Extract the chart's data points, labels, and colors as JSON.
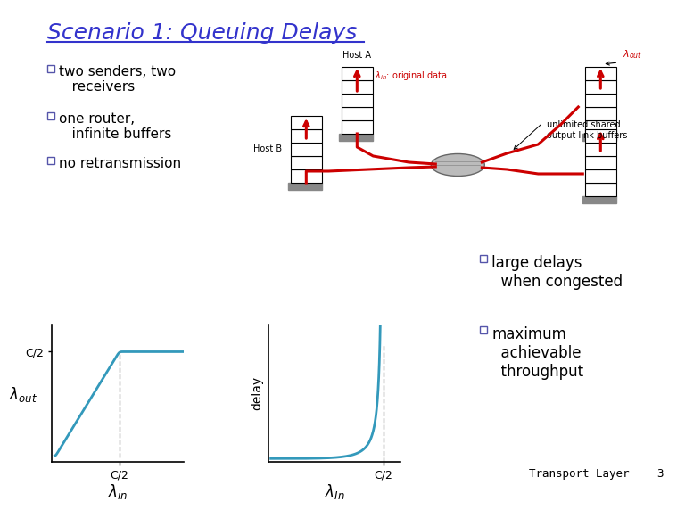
{
  "title": "Scenario 1: Queuing Delays",
  "title_color": "#3333cc",
  "title_fontsize": 18,
  "bg_color": "#ffffff",
  "bullet_box_color": "#5555aa",
  "graph1_line_color": "#3399bb",
  "graph2_line_color": "#3399bb",
  "dashed_color": "#888888",
  "red_color": "#cc0000",
  "footer_text": "Transport Layer",
  "footer_page": "3",
  "graph1_xlabel": "$\\lambda_{in}$",
  "graph1_ylabel": "$\\lambda_{out}$",
  "graph1_xtick": "C/2",
  "graph1_ytick": "C/2",
  "graph2_xlabel": "$\\lambda_{In}$",
  "graph2_ylabel": "delay",
  "graph2_xtick": "C/2",
  "bullets_left": [
    "two senders, two",
    "   receivers",
    "one router,",
    "   infinite buffers",
    "no retransmission"
  ],
  "bullets_right_1": "large delays\nwhen congested",
  "bullets_right_2": "maximum\nachievable\nthroughput",
  "host_a_label": "Host A",
  "host_b_label": "Host B",
  "lambda_in_label": "$\\lambda_{in}$: original data",
  "lambda_out_label": "$\\lambda_{out}$",
  "router_label": "unlimited shared\noutput link buffers"
}
